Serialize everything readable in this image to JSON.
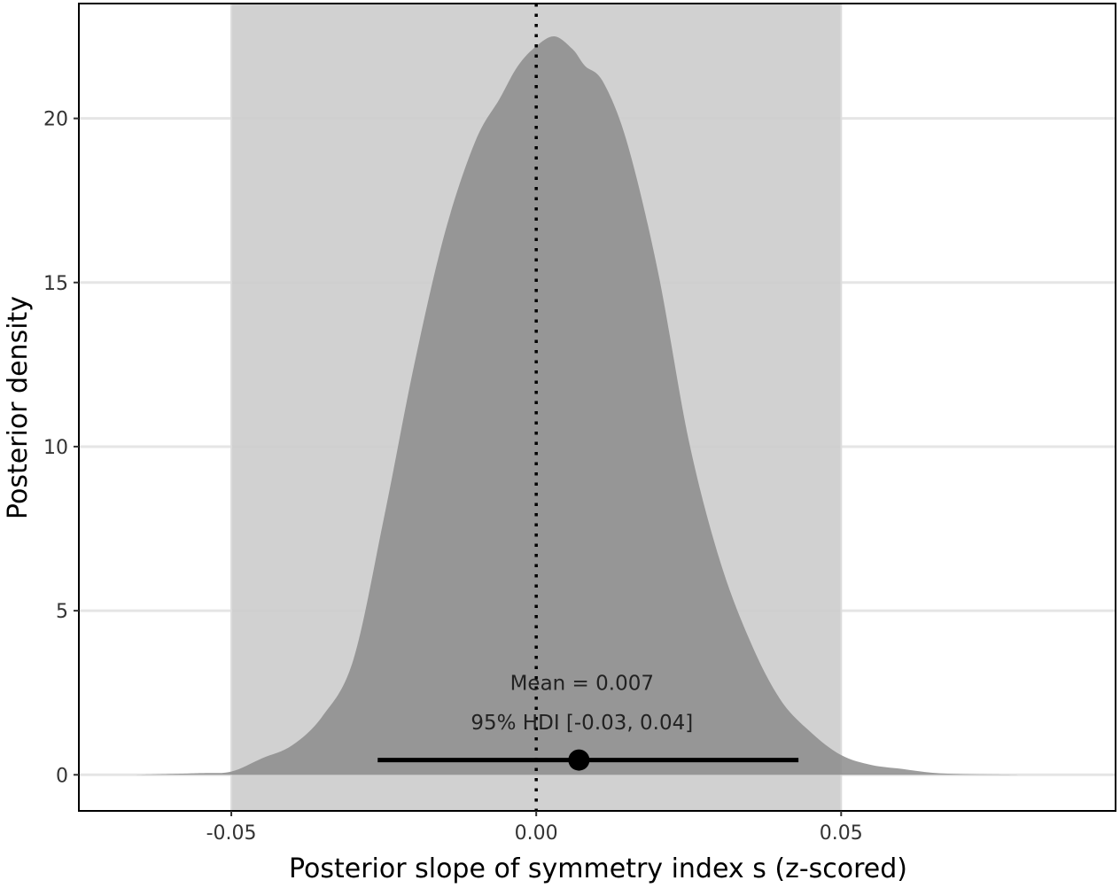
{
  "chart_data": {
    "type": "area",
    "xlabel": "Posterior slope of symmetry index s (z-scored)",
    "ylabel": "Posterior density",
    "xlim": [
      -0.075,
      0.095
    ],
    "ylim": [
      -1.1,
      23.5
    ],
    "x_ticks": [
      {
        "value": -0.05,
        "label": "-0.05"
      },
      {
        "value": 0.0,
        "label": "0.00"
      },
      {
        "value": 0.05,
        "label": "0.05"
      }
    ],
    "y_ticks": [
      {
        "value": 0,
        "label": "0"
      },
      {
        "value": 5,
        "label": "5"
      },
      {
        "value": 10,
        "label": "10"
      },
      {
        "value": 15,
        "label": "15"
      },
      {
        "value": 20,
        "label": "20"
      }
    ],
    "grid": "horizontal",
    "rope_region": {
      "xmin": -0.05,
      "xmax": 0.05
    },
    "reference_line": {
      "x": 0.0,
      "style": "dotted"
    },
    "density": {
      "x": [
        -0.066,
        -0.055,
        -0.05,
        -0.045,
        -0.04,
        -0.035,
        -0.03,
        -0.025,
        -0.02,
        -0.015,
        -0.01,
        -0.006,
        -0.003,
        0.0,
        0.003,
        0.006,
        0.008,
        0.011,
        0.015,
        0.02,
        0.025,
        0.03,
        0.035,
        0.04,
        0.045,
        0.05,
        0.055,
        0.06,
        0.065,
        0.07,
        0.075,
        0.08
      ],
      "y": [
        0.0,
        0.05,
        0.1,
        0.5,
        0.9,
        1.8,
        3.5,
        7.8,
        12.5,
        16.5,
        19.3,
        20.6,
        21.6,
        22.2,
        22.5,
        22.1,
        21.6,
        21.1,
        19.2,
        15.3,
        10.2,
        6.6,
        4.1,
        2.3,
        1.3,
        0.6,
        0.3,
        0.18,
        0.06,
        0.02,
        0.01,
        0.0
      ]
    },
    "mean": 0.007,
    "hdi": [
      -0.026,
      0.043
    ],
    "point_y": 0.45,
    "annotations": [
      {
        "text": "Mean = 0.007",
        "x": 0.0075,
        "y": 2.8
      },
      {
        "text": "95% HDI [-0.03, 0.04]",
        "x": 0.0075,
        "y": 1.6
      }
    ],
    "colors": {
      "rope": "#cccccc",
      "density": "#8c8c8c",
      "grid": "#e5e5e5",
      "interval": "#000000"
    }
  }
}
